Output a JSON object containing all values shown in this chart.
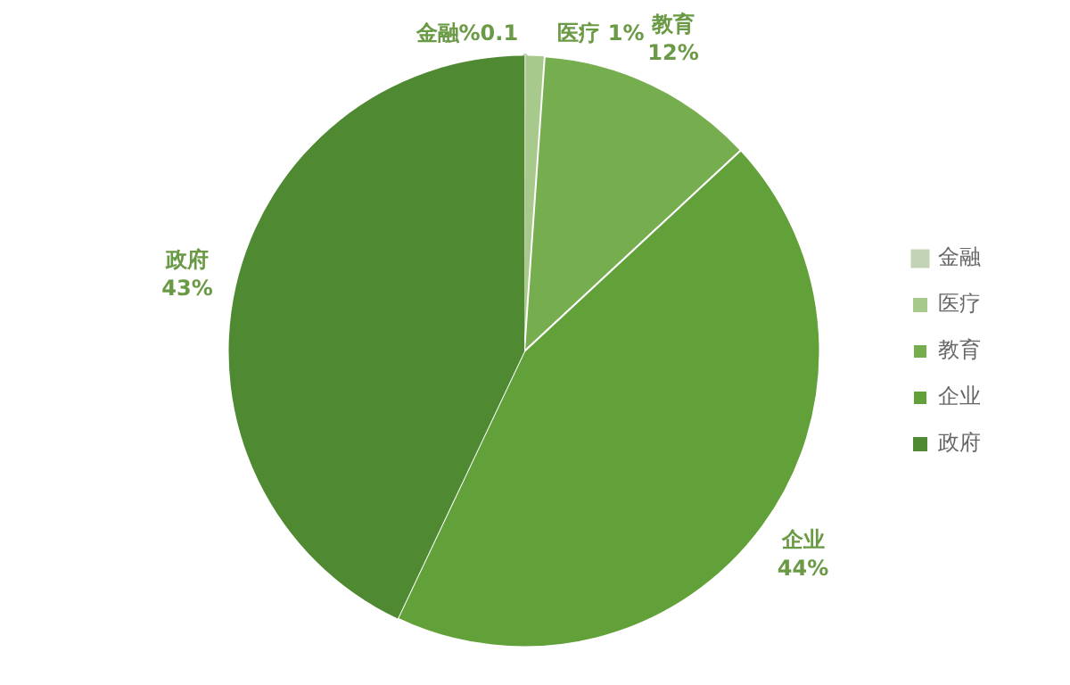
{
  "chart_data": {
    "type": "pie",
    "categories": [
      "金融",
      "医疗",
      "教育",
      "企业",
      "政府"
    ],
    "values": [
      0.1,
      1,
      12,
      44,
      43
    ],
    "colors": [
      "#c3d3b5",
      "#a7c98c",
      "#76ad4f",
      "#62a03a",
      "#4f8a32"
    ],
    "value_labels": [
      "金融%0.1",
      "医疗 1%",
      "教育 12%",
      "企业 44%",
      "政府 43%"
    ],
    "legend": "right"
  }
}
